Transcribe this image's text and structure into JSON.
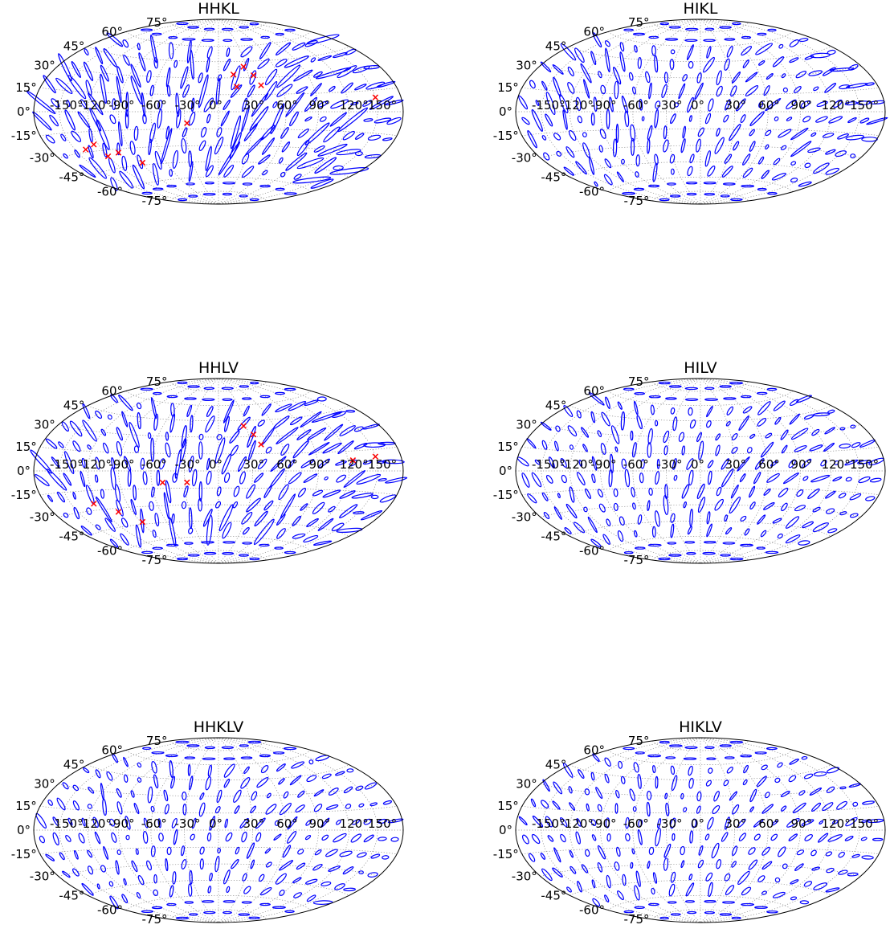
{
  "figure": {
    "projection": "hammer",
    "graticule": {
      "lon_step": 30,
      "lat_step": 15,
      "style": "dotted",
      "color": "#888888"
    },
    "colors": {
      "ellipse": "#0000ff",
      "marker": "#ff0000",
      "frame": "#000000"
    },
    "lon_ticks": [
      "-150°",
      "-120°",
      "-90°",
      "-60°",
      "-30°",
      "0°",
      "30°",
      "60°",
      "90°",
      "120°",
      "150°"
    ],
    "lat_ticks": [
      "75°",
      "60°",
      "45°",
      "30°",
      "15°",
      "0°",
      "-15°",
      "-30°",
      "-45°",
      "-60°",
      "-75°"
    ]
  },
  "chart_data": [
    {
      "type": "scatter",
      "title": "HHKL",
      "marker_color": "#ff0000",
      "ellipse_color": "#0000ff",
      "markers": [
        [
          27,
          40
        ],
        [
          15,
          33
        ],
        [
          35,
          32
        ],
        [
          17,
          22
        ],
        [
          40,
          23
        ],
        [
          150,
          10
        ],
        [
          -28,
          -10
        ],
        [
          -138,
          -28
        ],
        [
          -125,
          -25
        ],
        [
          -120,
          -35
        ],
        [
          -105,
          -33
        ],
        [
          -88,
          -43
        ]
      ]
    },
    {
      "type": "scatter",
      "title": "HIKL",
      "marker_color": "#ff0000",
      "ellipse_color": "#0000ff",
      "markers": []
    },
    {
      "type": "scatter",
      "title": "HHLV",
      "marker_color": "#ff0000",
      "ellipse_color": "#0000ff",
      "markers": [
        [
          27,
          40
        ],
        [
          35,
          32
        ],
        [
          40,
          23
        ],
        [
          150,
          10
        ],
        [
          125,
          8
        ],
        [
          -28,
          -10
        ],
        [
          -50,
          -10
        ],
        [
          -125,
          -25
        ],
        [
          -105,
          -33
        ],
        [
          -88,
          -43
        ]
      ]
    },
    {
      "type": "scatter",
      "title": "HILV",
      "marker_color": "#ff0000",
      "ellipse_color": "#0000ff",
      "markers": []
    },
    {
      "type": "scatter",
      "title": "HHKLV",
      "marker_color": "#ff0000",
      "ellipse_color": "#0000ff",
      "markers": []
    },
    {
      "type": "scatter",
      "title": "HIKLV",
      "marker_color": "#ff0000",
      "ellipse_color": "#0000ff",
      "markers": []
    }
  ]
}
